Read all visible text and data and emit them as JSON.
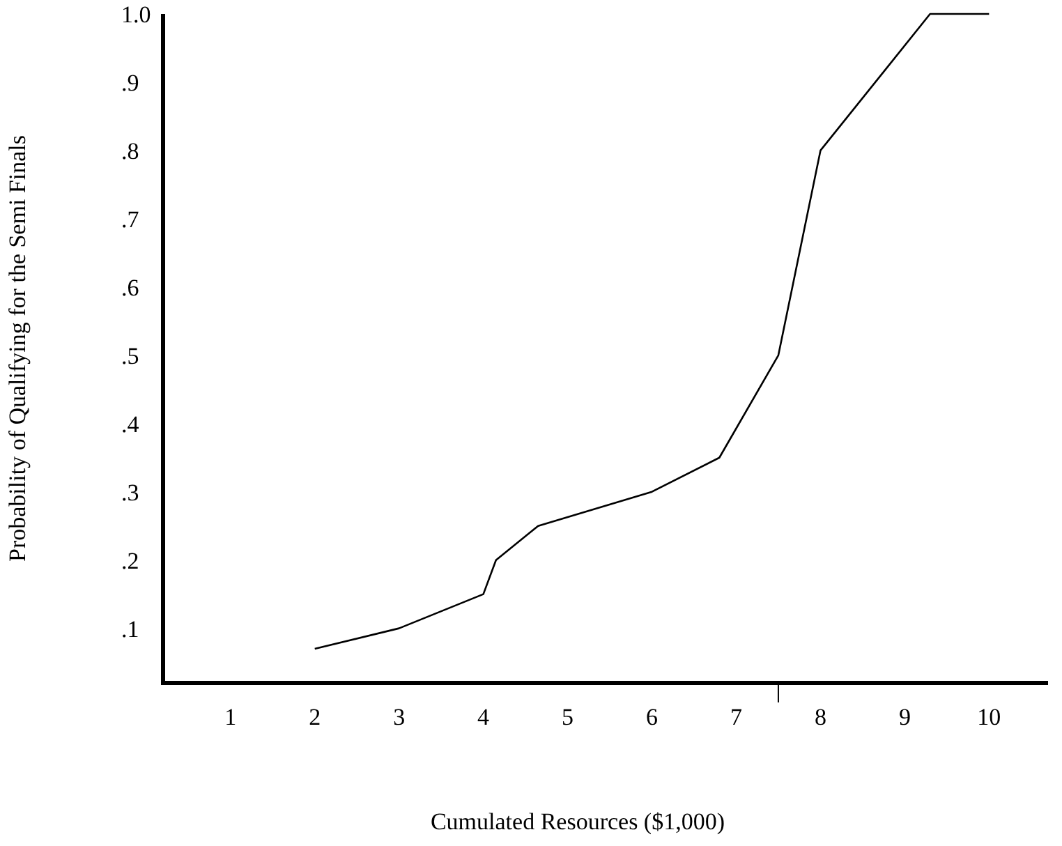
{
  "chart_data": {
    "type": "line",
    "xlabel": "Cumulated Resources ($1,000)",
    "ylabel": "Probability of Qualifying for the Semi Finals",
    "x": [
      2,
      3,
      4,
      4.15,
      4.65,
      6,
      6.8,
      7.5,
      8,
      9.3,
      10
    ],
    "series": [
      {
        "color": "#000000",
        "values": [
          0.07,
          0.1,
          0.15,
          0.2,
          0.25,
          0.3,
          0.35,
          0.5,
          0.8,
          1.0,
          1.0
        ]
      }
    ],
    "xlim": [
      0.2,
      10.7
    ],
    "xticks": [
      1,
      2,
      3,
      4,
      5,
      6,
      7,
      {
        "value": 7.5,
        "label": null
      },
      8,
      9,
      10
    ],
    "ylim": [
      0.02,
      1.0
    ],
    "yticks": [
      {
        "value": 0.1,
        "label": ".1"
      },
      {
        "value": 0.2,
        "label": ".2"
      },
      {
        "value": 0.3,
        "label": ".3"
      },
      {
        "value": 0.4,
        "label": ".4"
      },
      {
        "value": 0.5,
        "label": ".5"
      },
      {
        "value": 0.6,
        "label": ".6"
      },
      {
        "value": 0.7,
        "label": ".7"
      },
      {
        "value": 0.8,
        "label": ".8"
      },
      {
        "value": 0.9,
        "label": ".9"
      },
      {
        "value": 1.0,
        "label": "1.0"
      }
    ],
    "marker": "none",
    "line_style": "solid"
  }
}
